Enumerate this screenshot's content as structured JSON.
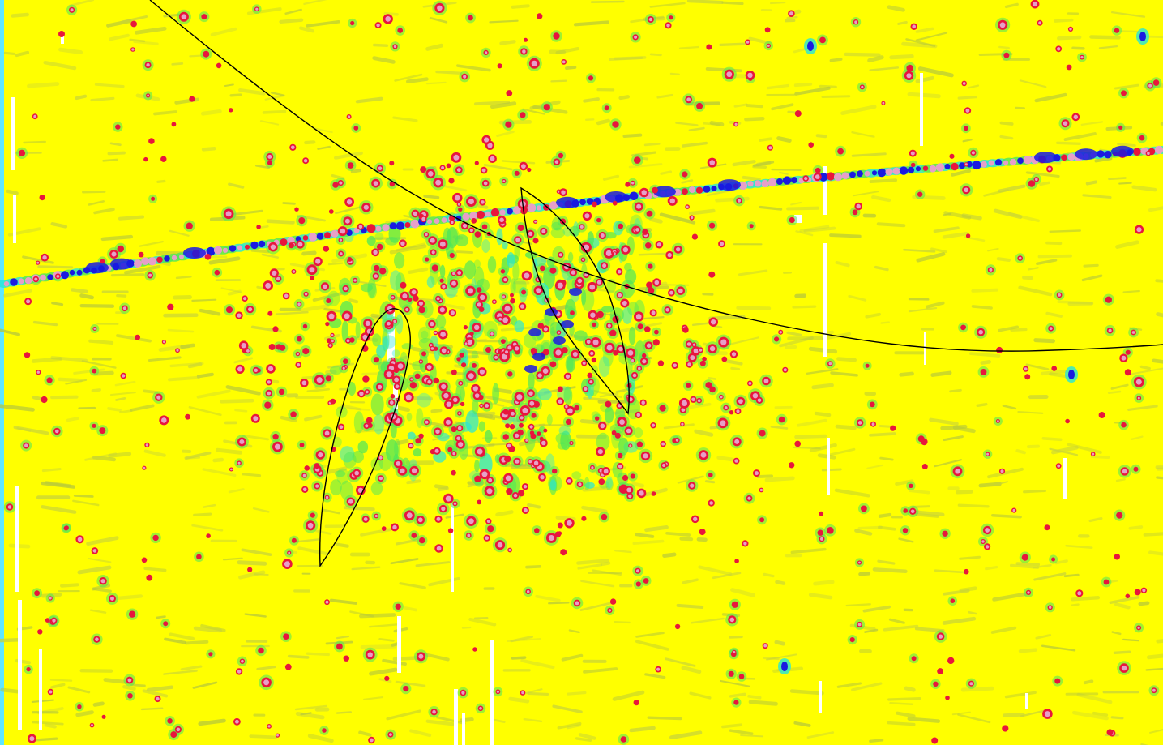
{
  "map": {
    "background_color": "#ffff00",
    "palette": {
      "texture": "#c8d43a",
      "texture_alt": "#b6c83c",
      "halo_green": "#4ee65a",
      "halo_cyan": "#26e6d8",
      "dot_red": "#e8163c",
      "dot_pink": "#e6a0c8",
      "dot_blue": "#1a1ae0",
      "void": "#ffffff",
      "contour": "#000000",
      "edge": "#5fe6ff"
    },
    "layers": [
      "texture",
      "anomaly-dots",
      "linear-feature",
      "contour-lines",
      "data-gaps"
    ]
  }
}
